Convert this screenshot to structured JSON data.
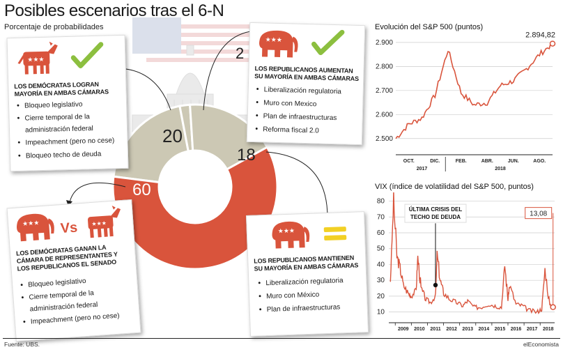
{
  "header": {
    "title": "Posibles escenarios tras el 6-N",
    "subtitle": "Porcentaje de probabilidades"
  },
  "donut": {
    "chart_data": {
      "type": "pie",
      "categories": [
        "Demócratas logran mayoría en ambas cámaras",
        "Republicanos aumentan su mayoría",
        "Republicanos mantienen su mayoría",
        "Demócratas ganan la Cámara de Representantes"
      ],
      "values": [
        20,
        2,
        18,
        60
      ]
    },
    "labels": {
      "dem_both": "20",
      "rep_increase": "2",
      "rep_keep": "18",
      "split": "60"
    },
    "colors": {
      "red": "#d9543c",
      "beige": "#ccc8b4"
    }
  },
  "cards": {
    "dem_both": {
      "heading": "LOS DEMÓCRATAS LOGRAN MAYORÍA EN AMBAS CÁMARAS",
      "items": [
        "Bloqueo legislativo",
        "Cierre temporal de la administración federal",
        "Impeachment (pero no cese)",
        "Bloqueo techo de deuda"
      ],
      "icons": [
        "donkey-icon",
        "checkmark-icon"
      ]
    },
    "rep_increase": {
      "heading": "LOS REPUBLICANOS AUMENTAN SU MAYORÍA EN AMBAS CÁMARAS",
      "items": [
        "Liberalización regulatoria",
        "Muro con Mexico",
        "Plan de infraestructuras",
        "Reforma fiscal 2.0"
      ],
      "icons": [
        "elephant-icon",
        "checkmark-icon"
      ]
    },
    "split": {
      "heading": "LOS DEMÓCRATAS GANAN LA CÁMARA DE REPRESENTANTES Y LOS REPUBLICANOS EL SENADO",
      "vs": "Vs",
      "items": [
        "Bloqueo legislativo",
        "Cierre temporal de la administración federal",
        "Impeachment (pero no cese)"
      ],
      "icons": [
        "elephant-icon",
        "donkey-icon"
      ]
    },
    "rep_keep": {
      "heading": "LOS REPUBLICANOS MANTIENEN SU MAYORÍA EN AMBAS CÁMARAS",
      "items": [
        "Liberalización regulatoria",
        "Muro con México",
        "Plan de infraestructuras"
      ],
      "icons": [
        "elephant-icon",
        "equals-icon"
      ]
    }
  },
  "sp500": {
    "title": "Evolución del S&P 500 (puntos)",
    "last_value_label": "2.894,82",
    "chart_data": {
      "type": "line",
      "ylim": [
        2450,
        2920
      ],
      "yticks": [
        "2.900",
        "2.800",
        "2.700",
        "2.600",
        "2.500"
      ],
      "ytick_values": [
        2900,
        2800,
        2700,
        2600,
        2500
      ],
      "month_labels": [
        "OCT.",
        "DIC.",
        "FEB.",
        "ABR.",
        "JUN.",
        "AGO."
      ],
      "year_labels": [
        "2017",
        "2018"
      ],
      "months": [
        "2017-09",
        "2017-10",
        "2017-11",
        "2017-12",
        "2018-01",
        "2018-02",
        "2018-03",
        "2018-04",
        "2018-05",
        "2018-06",
        "2018-07",
        "2018-08",
        "2018-09"
      ],
      "values": [
        2500,
        2560,
        2585,
        2680,
        2870,
        2690,
        2640,
        2650,
        2720,
        2740,
        2790,
        2850,
        2895
      ],
      "color": "#d9543c"
    }
  },
  "vix": {
    "title": "VIX (índice de volatilidad del S&P 500, puntos)",
    "annotation": "ÚLTIMA CRISIS DEL TECHO DE DEUDA",
    "last_value_label": "13,08",
    "chart_data": {
      "type": "line",
      "ylim": [
        5,
        82
      ],
      "yticks": [
        "80",
        "70",
        "60",
        "50",
        "40",
        "30",
        "20",
        "10"
      ],
      "ytick_values": [
        80,
        70,
        60,
        50,
        40,
        30,
        20,
        10
      ],
      "year_labels": [
        "2009",
        "2010",
        "2011",
        "2012",
        "2013",
        "2014",
        "2015",
        "2016",
        "2017",
        "2018"
      ],
      "x": [
        2008.7,
        2008.9,
        2009.1,
        2009.3,
        2009.5,
        2009.8,
        2010.0,
        2010.3,
        2010.4,
        2010.6,
        2010.9,
        2011.2,
        2011.5,
        2011.6,
        2011.8,
        2012.0,
        2012.4,
        2012.8,
        2013.2,
        2013.5,
        2013.9,
        2014.3,
        2014.8,
        2015.2,
        2015.6,
        2015.8,
        2016.0,
        2016.1,
        2016.5,
        2016.9,
        2017.3,
        2017.8,
        2018.1,
        2018.3,
        2018.6,
        2018.8
      ],
      "values": [
        30,
        80,
        45,
        38,
        27,
        22,
        20,
        24,
        45,
        25,
        18,
        16,
        20,
        46,
        30,
        22,
        18,
        16,
        14,
        17,
        13,
        13,
        15,
        14,
        13,
        40,
        18,
        27,
        15,
        14,
        11,
        10,
        12,
        37,
        14,
        13.08
      ],
      "annotation_year": 2011.5,
      "annotation_value": 27,
      "color": "#d9543c"
    }
  },
  "footer": {
    "source": "Fuente: UBS.",
    "brand": "elEconomista"
  }
}
